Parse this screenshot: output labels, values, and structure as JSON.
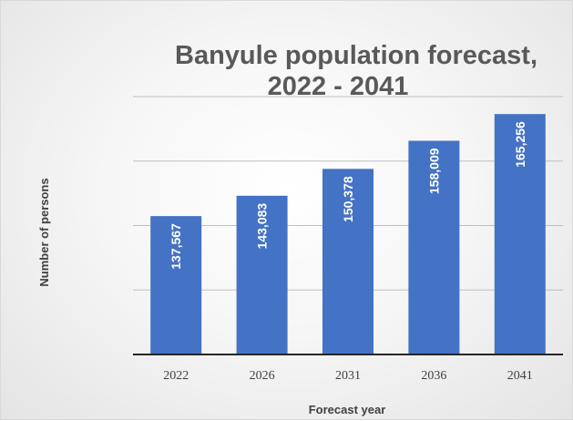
{
  "chart_data": {
    "type": "bar",
    "title_lines": [
      "Banyule population forecast,",
      "2022 - 2041"
    ],
    "xlabel": "Forecast year",
    "ylabel": "Number of persons",
    "categories": [
      "2022",
      "2026",
      "2031",
      "2036",
      "2041"
    ],
    "values": [
      137567,
      143083,
      150378,
      158009,
      165256
    ],
    "data_labels": [
      "137,567",
      "143,083",
      "150,378",
      "158,009",
      "165,256"
    ],
    "ylim": [
      100000,
      170000
    ],
    "grid": true,
    "bar_color": "#4472c4",
    "legend": "none"
  }
}
